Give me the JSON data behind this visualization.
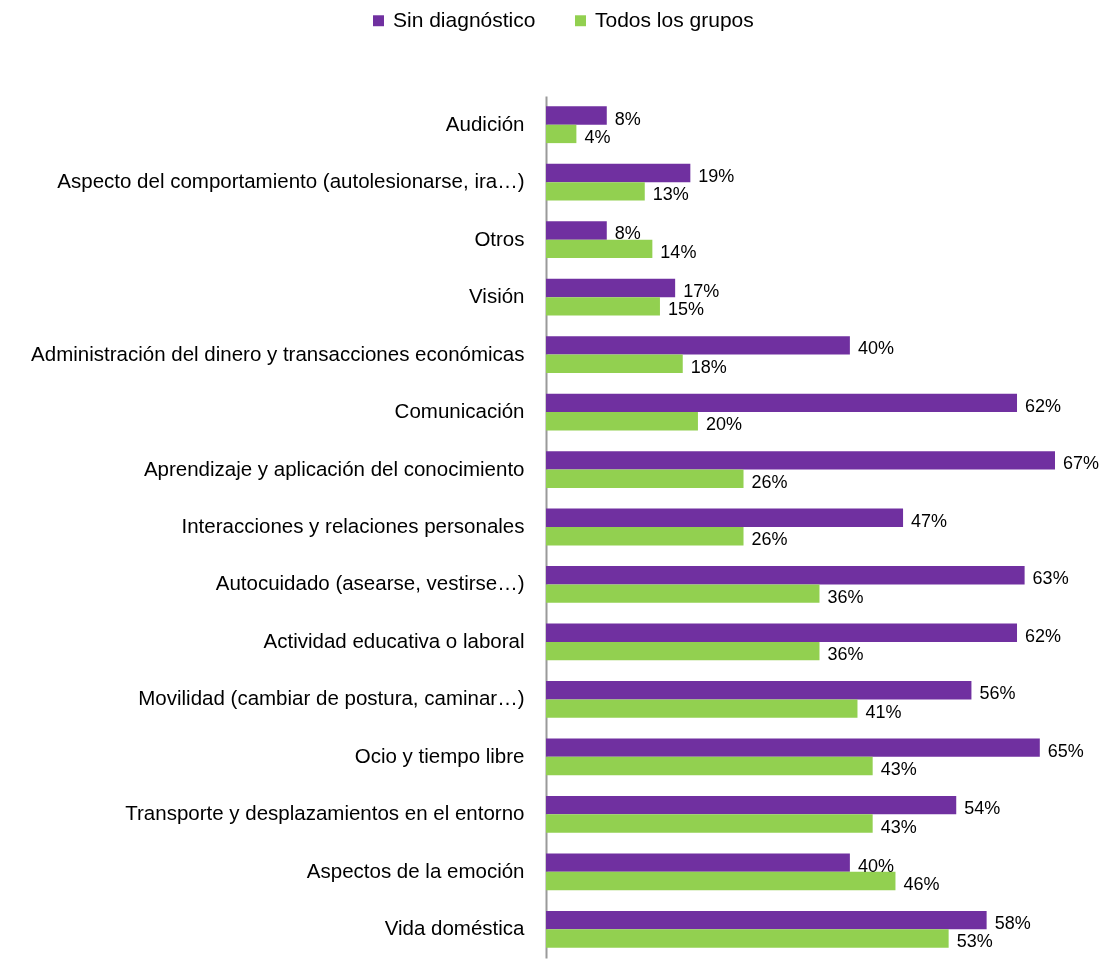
{
  "chart_data": {
    "type": "bar",
    "orientation": "horizontal",
    "legend": "top",
    "categories": [
      "Audición",
      "Aspecto del comportamiento (autolesionarse, ira…)",
      "Otros",
      "Visión",
      "Administración del dinero y transacciones económicas",
      "Comunicación",
      "Aprendizaje y aplicación del conocimiento",
      "Interacciones y relaciones personales",
      "Autocuidado (asearse, vestirse…)",
      "Actividad educativa o laboral",
      "Movilidad (cambiar de postura, caminar…)",
      "Ocio y tiempo libre",
      "Transporte y desplazamientos en el entorno",
      "Aspectos de la emoción",
      "Vida doméstica"
    ],
    "series": [
      {
        "name": "Sin diagnóstico",
        "color": "#7030a0",
        "values": [
          8,
          19,
          8,
          17,
          40,
          62,
          67,
          47,
          63,
          62,
          56,
          65,
          54,
          40,
          58
        ],
        "value_labels": [
          "8%",
          "19%",
          "8%",
          "17%",
          "40%",
          "62%",
          "67%",
          "47%",
          "63%",
          "62%",
          "56%",
          "65%",
          "54%",
          "40%",
          "58%"
        ]
      },
      {
        "name": "Todos los grupos",
        "color": "#92d050",
        "values": [
          4,
          13,
          14,
          15,
          18,
          20,
          26,
          26,
          36,
          36,
          41,
          43,
          43,
          46,
          53
        ],
        "value_labels": [
          "4%",
          "13%",
          "14%",
          "15%",
          "18%",
          "20%",
          "26%",
          "26%",
          "36%",
          "36%",
          "41%",
          "43%",
          "43%",
          "46%",
          "53%"
        ]
      }
    ]
  }
}
